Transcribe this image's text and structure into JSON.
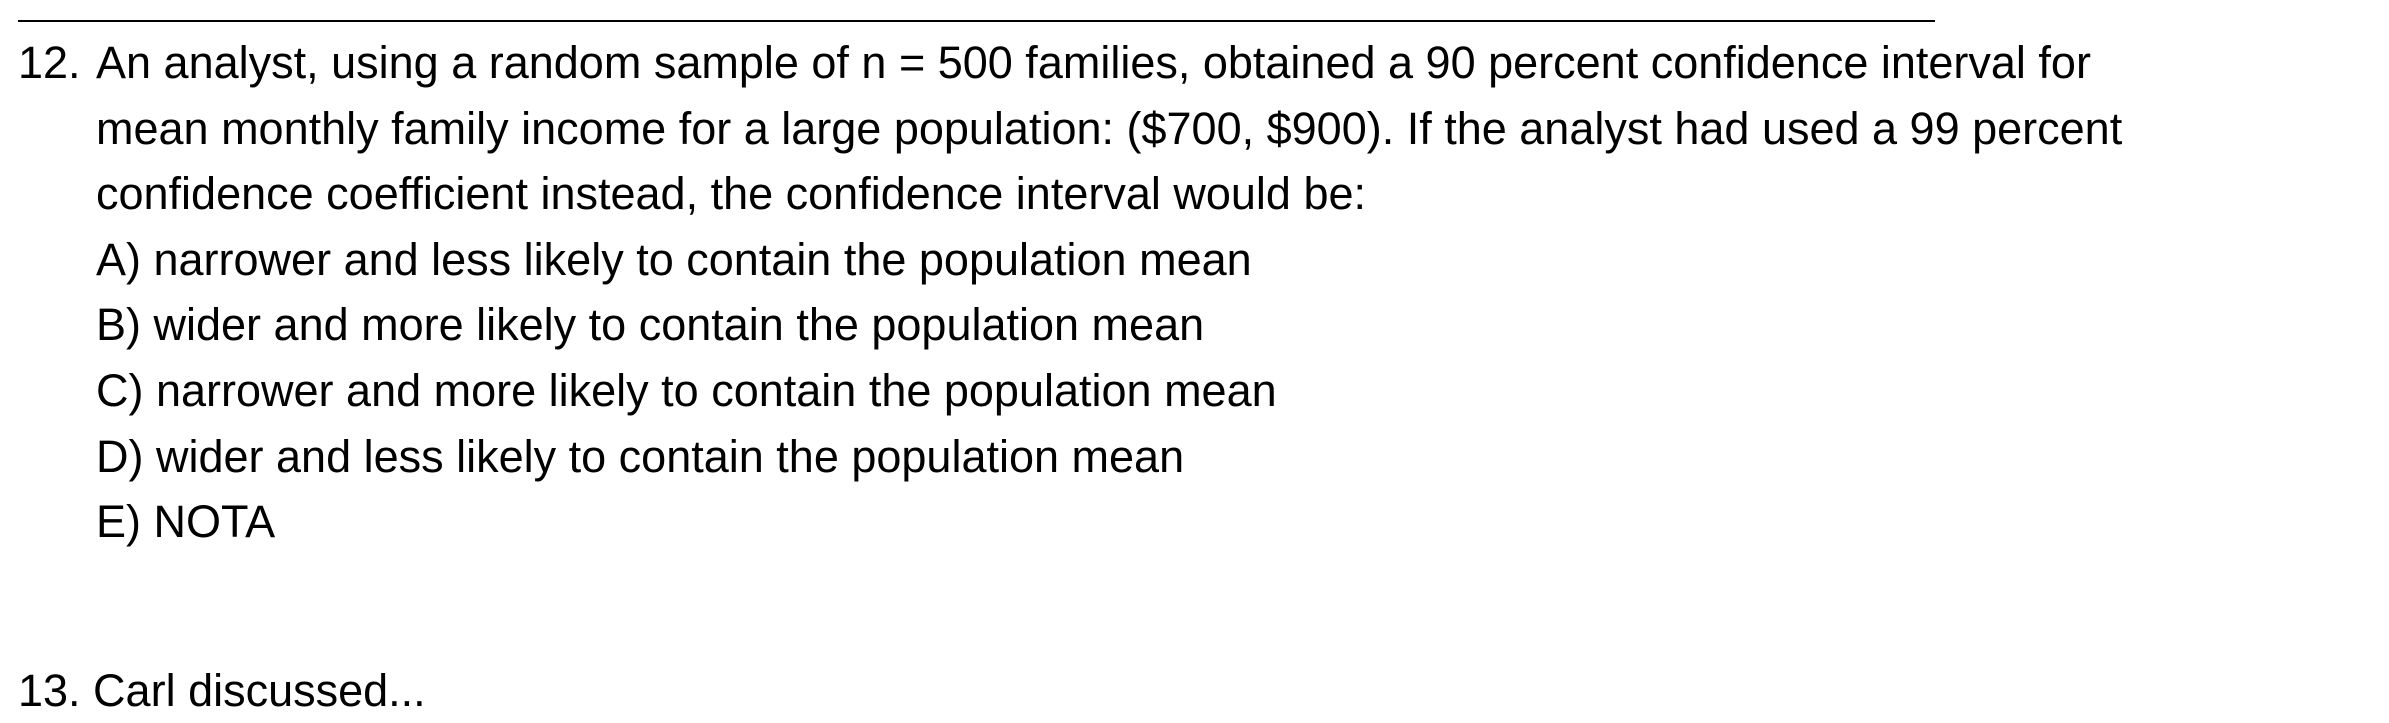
{
  "question": {
    "number": "12.",
    "lines": [
      "An analyst, using a random sample of n = 500 families, obtained a 90 percent confidence interval for",
      "mean monthly family income for a large population: ($700, $900). If the analyst had used a 99 percent",
      "confidence coefficient instead, the confidence interval would be:"
    ],
    "options": [
      "A) narrower and less likely to contain the population mean",
      "B) wider and more likely to contain the population mean",
      "C) narrower and more likely to contain the population mean",
      "D) wider and less likely to contain the population mean",
      "E) NOTA"
    ]
  },
  "next_question_partial": "13. Carl discussed..."
}
